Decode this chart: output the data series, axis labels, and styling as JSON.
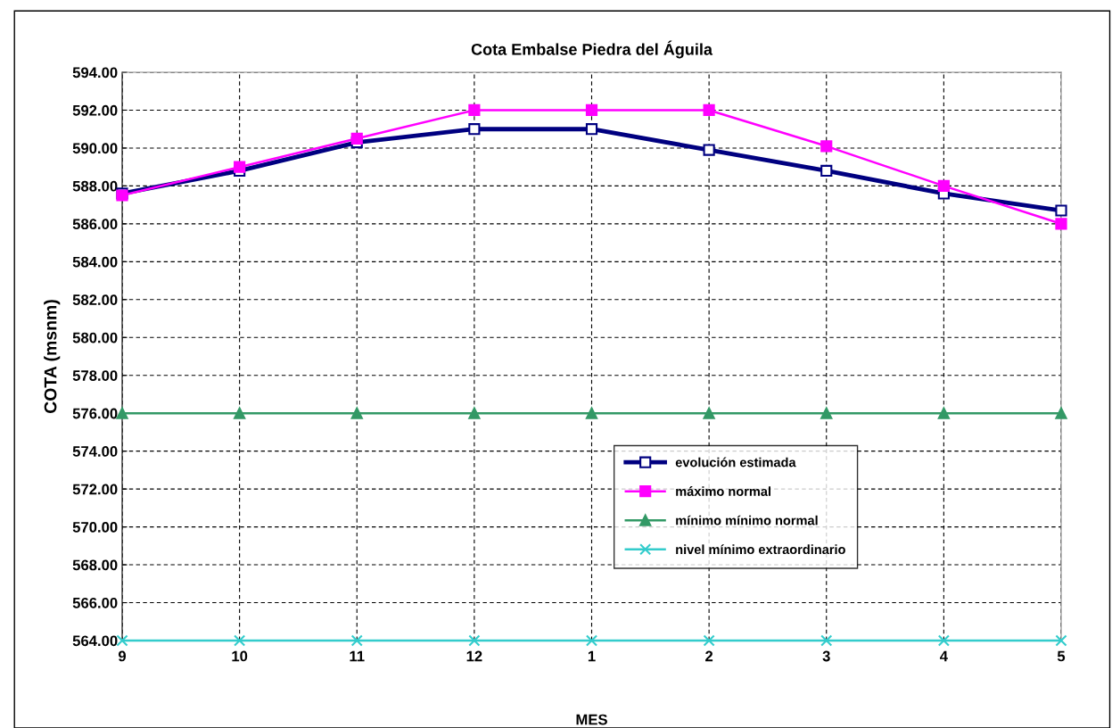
{
  "chart_data": {
    "type": "line",
    "title": "Cota Embalse Piedra del Águila",
    "xlabel": "MES",
    "ylabel": "COTA (msnm)",
    "categories": [
      "9",
      "10",
      "11",
      "12",
      "1",
      "2",
      "3",
      "4",
      "5"
    ],
    "series": [
      {
        "name": "evolución estimada",
        "color": "#000080",
        "marker": "square",
        "values": [
          587.6,
          588.8,
          590.3,
          591.0,
          591.0,
          589.9,
          588.8,
          587.6,
          586.7
        ]
      },
      {
        "name": "máximo normal",
        "color": "#ff00ff",
        "marker": "square",
        "values": [
          587.5,
          589.0,
          590.5,
          592.0,
          592.0,
          592.0,
          590.1,
          588.0,
          586.0
        ]
      },
      {
        "name": "mínimo mínimo normal",
        "color": "#339966",
        "marker": "triangle",
        "values": [
          576,
          576,
          576,
          576,
          576,
          576,
          576,
          576,
          576
        ]
      },
      {
        "name": "nivel mínimo extraordinario",
        "color": "#33cccc",
        "marker": "cross",
        "values": [
          564,
          564,
          564,
          564,
          564,
          564,
          564,
          564,
          564
        ]
      }
    ],
    "ylim": [
      564,
      594
    ],
    "yticks": [
      {
        "value": 564,
        "label": "564.00"
      },
      {
        "value": 566,
        "label": "566.00"
      },
      {
        "value": 568,
        "label": "568.00"
      },
      {
        "value": 570,
        "label": "570.00"
      },
      {
        "value": 572,
        "label": "572.00"
      },
      {
        "value": 574,
        "label": "574.00"
      },
      {
        "value": 576,
        "label": "576.00"
      },
      {
        "value": 578,
        "label": "578.00"
      },
      {
        "value": 580,
        "label": "580.00"
      },
      {
        "value": 582,
        "label": "582.00"
      },
      {
        "value": 584,
        "label": "584.00"
      },
      {
        "value": 586,
        "label": "586.00"
      },
      {
        "value": 588,
        "label": "588.00"
      },
      {
        "value": 590,
        "label": "590.00"
      },
      {
        "value": 592,
        "label": "592.00"
      },
      {
        "value": 594,
        "label": "594.00"
      }
    ],
    "grid": true,
    "legend": "right",
    "line_style": "solid"
  }
}
